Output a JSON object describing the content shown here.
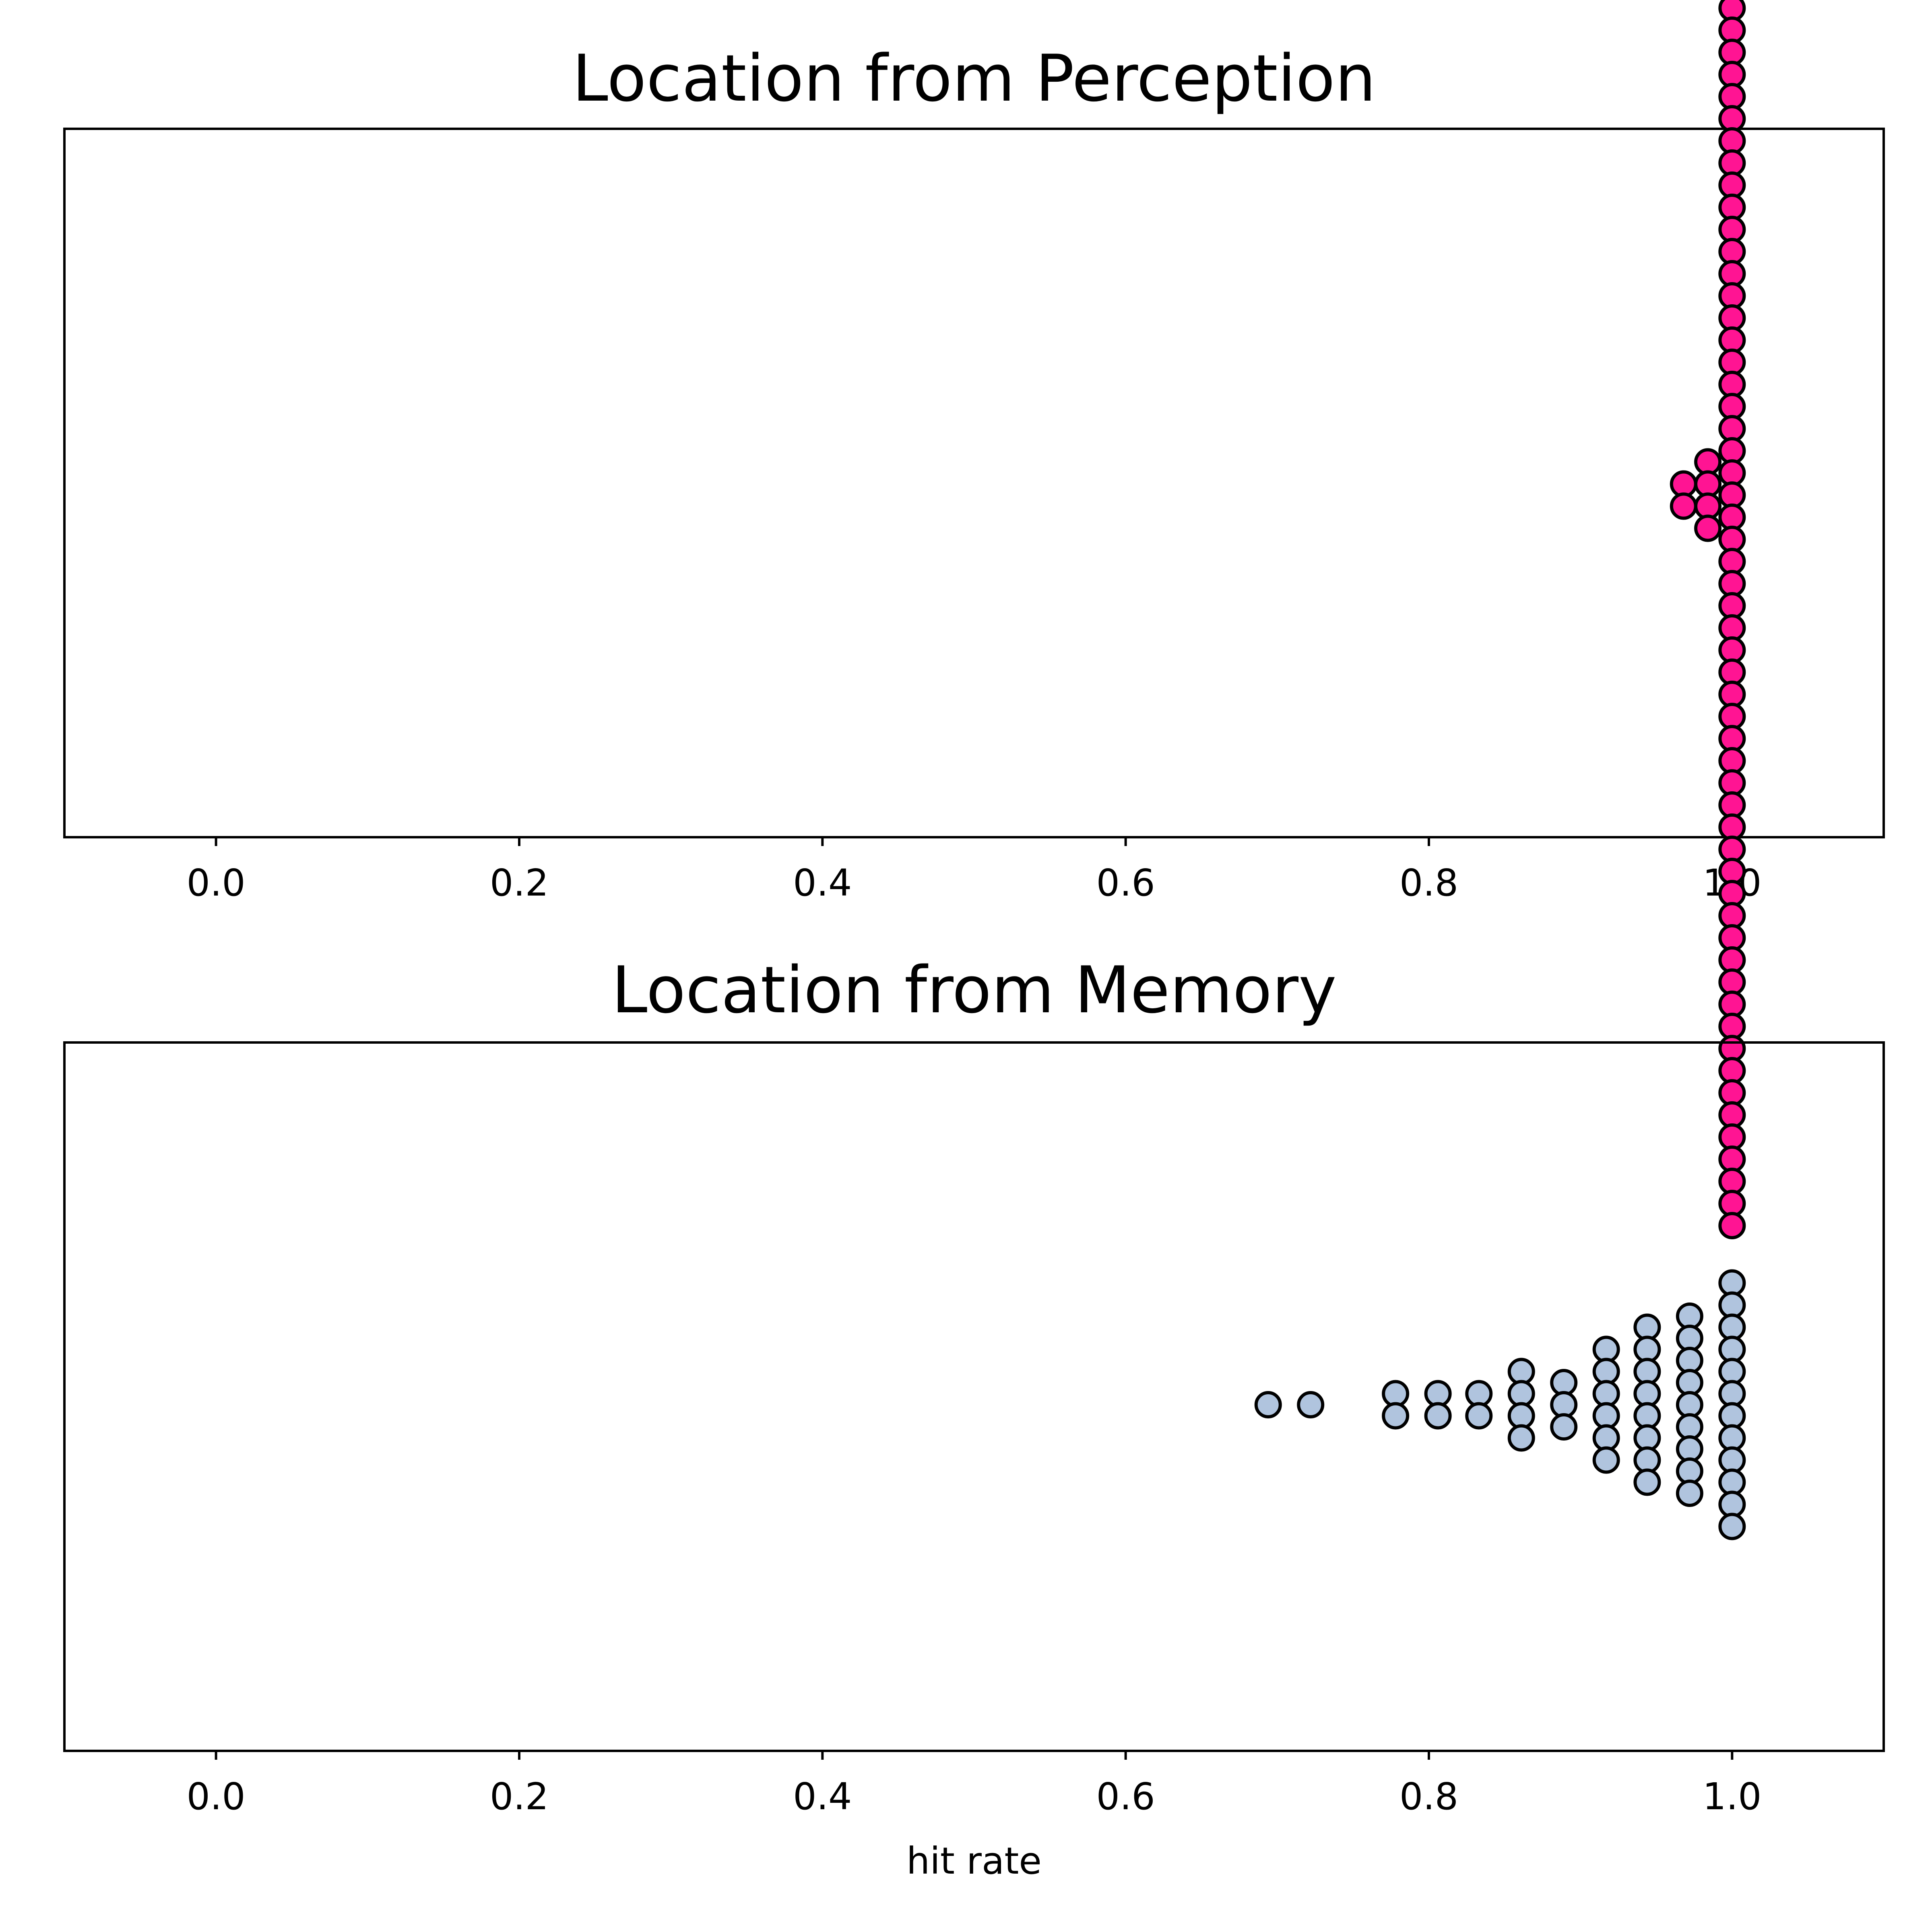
{
  "chart_data": [
    {
      "type": "scatter",
      "subtype": "swarm",
      "title": "Location from Perception",
      "xlabel": "",
      "ylabel": "",
      "xlim": [
        -0.1,
        1.1
      ],
      "xticks": [
        "0.0",
        "0.2",
        "0.4",
        "0.6",
        "0.8",
        "1.0"
      ],
      "grid": false,
      "marker_color": "#ff1493",
      "marker_edge": "#000000",
      "series": [
        {
          "values": [
            1.0,
            1.0,
            1.0,
            1.0,
            1.0,
            1.0,
            1.0,
            1.0,
            1.0,
            1.0,
            1.0,
            1.0,
            1.0,
            1.0,
            1.0,
            1.0,
            1.0,
            1.0,
            1.0,
            1.0,
            1.0,
            1.0,
            1.0,
            1.0,
            1.0,
            1.0,
            1.0,
            1.0,
            1.0,
            1.0,
            1.0,
            1.0,
            1.0,
            1.0,
            1.0,
            1.0,
            1.0,
            1.0,
            1.0,
            1.0,
            1.0,
            1.0,
            1.0,
            1.0,
            1.0,
            1.0,
            1.0,
            1.0,
            1.0,
            1.0,
            1.0,
            1.0,
            1.0,
            1.0,
            1.0,
            1.0,
            1.0,
            1.0,
            1.0,
            1.0,
            1.0,
            1.0,
            1.0,
            1.0,
            1.0,
            1.0,
            1.0,
            0.984,
            0.984,
            0.984,
            0.984,
            0.968,
            0.968
          ]
        }
      ]
    },
    {
      "type": "scatter",
      "subtype": "swarm",
      "title": "Location from Memory",
      "xlabel": "hit rate",
      "ylabel": "",
      "xlim": [
        -0.1,
        1.1
      ],
      "xticks": [
        "0.0",
        "0.2",
        "0.4",
        "0.6",
        "0.8",
        "1.0"
      ],
      "grid": false,
      "marker_color": "#b0c4de",
      "marker_edge": "#000000",
      "series": [
        {
          "values": [
            0.694,
            0.722,
            0.778,
            0.778,
            0.806,
            0.806,
            0.833,
            0.833,
            0.861,
            0.861,
            0.861,
            0.861,
            0.889,
            0.889,
            0.889,
            0.917,
            0.917,
            0.917,
            0.917,
            0.917,
            0.917,
            0.944,
            0.944,
            0.944,
            0.944,
            0.944,
            0.944,
            0.944,
            0.944,
            0.972,
            0.972,
            0.972,
            0.972,
            0.972,
            0.972,
            0.972,
            0.972,
            0.972,
            1.0,
            1.0,
            1.0,
            1.0,
            1.0,
            1.0,
            1.0,
            1.0,
            1.0,
            1.0,
            1.0,
            1.0
          ]
        }
      ]
    }
  ]
}
